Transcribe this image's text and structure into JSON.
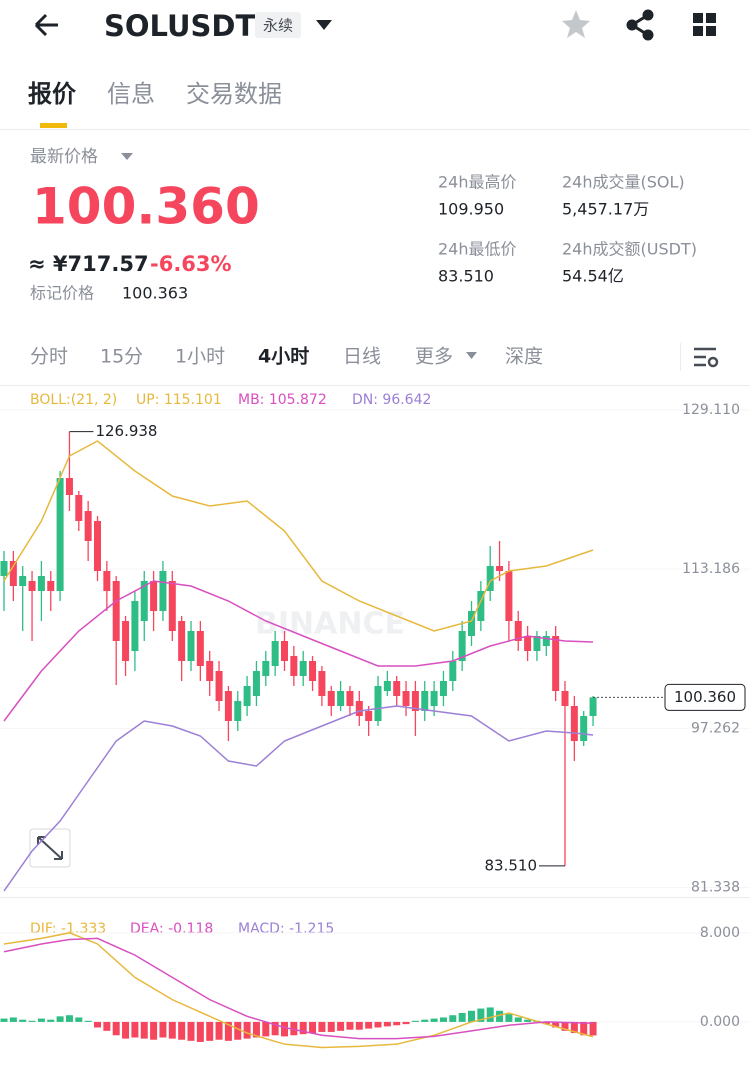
{
  "header": {
    "symbol": "SOLUSDT",
    "badge": "永续"
  },
  "tabs": [
    "报价",
    "信息",
    "交易数据"
  ],
  "price": {
    "label": "最新价格",
    "last": "100.360",
    "cny": "≈ ¥717.57",
    "change": "-6.63%",
    "mark_label": "标记价格",
    "mark": "100.363"
  },
  "stats": [
    {
      "label": "24h最高价",
      "value": "109.950"
    },
    {
      "label": "24h成交量(SOL)",
      "value": "5,457.17万"
    },
    {
      "label": "24h最低价",
      "value": "83.510"
    },
    {
      "label": "24h成交额(USDT)",
      "value": "54.54亿"
    }
  ],
  "intervals": [
    "分时",
    "15分",
    "1小时",
    "4小时",
    "日线",
    "更多",
    "深度"
  ],
  "chart_data": {
    "type": "candlestick",
    "watermark": "BINANCE",
    "indicator": {
      "name": "BOLL:(21, 2)",
      "up": "UP: 115.101",
      "mb": "MB: 105.872",
      "dn": "DN: 96.642"
    },
    "ylim": [
      80.6,
      130.6
    ],
    "yticks": [
      {
        "value": 129.11,
        "label": "129.110"
      },
      {
        "value": 113.186,
        "label": "113.186"
      },
      {
        "value": 97.262,
        "label": "97.262"
      },
      {
        "value": 81.338,
        "label": "81.338"
      }
    ],
    "grid": true,
    "candles": {
      "up_color": "#2ebd85",
      "down_color": "#f6465d",
      "open": [
        112.5,
        114,
        111.5,
        112,
        111,
        112,
        111,
        122.3,
        120.6,
        119,
        118,
        113,
        112,
        108,
        105,
        108,
        112,
        109,
        112,
        108,
        104,
        107,
        104,
        103,
        101,
        98,
        99.5,
        100.5,
        102.5,
        103.5,
        106,
        104.5,
        102.5,
        104,
        103,
        101,
        99.5,
        101,
        100,
        99,
        98,
        101,
        102,
        101,
        101,
        99,
        99.5,
        100.5,
        102,
        104,
        106.5,
        108,
        111,
        113.5,
        113,
        108,
        106.5,
        105,
        105.5,
        106.5,
        101,
        99.5,
        96,
        98.5
      ],
      "close": [
        114,
        111.5,
        112.5,
        111,
        112.5,
        111,
        122.3,
        120.6,
        118,
        116,
        113,
        111,
        106,
        104,
        110,
        112,
        109,
        113,
        107,
        104,
        107,
        103.5,
        102,
        100,
        98,
        100,
        101.5,
        103,
        104,
        106,
        104,
        102.5,
        104,
        102,
        100.5,
        99.5,
        101,
        99.5,
        98.5,
        98,
        101.5,
        102,
        100.5,
        99.5,
        99,
        101,
        101,
        102,
        104,
        107,
        109,
        111,
        113.5,
        113,
        108,
        106,
        105,
        106.5,
        106.5,
        101,
        99.5,
        96,
        98.5,
        100.36
      ],
      "high": [
        115,
        115,
        113.5,
        113,
        114,
        113,
        123,
        126.938,
        121,
        120,
        118.5,
        114,
        112.5,
        108.5,
        111,
        113,
        113,
        114,
        113,
        108.5,
        108,
        108,
        105,
        104,
        101.5,
        101,
        102.5,
        104,
        105,
        107,
        107,
        105.5,
        105,
        104.5,
        103.5,
        101.5,
        102,
        101.5,
        101,
        99.5,
        102.5,
        103,
        102.5,
        102,
        102,
        102,
        102,
        103,
        105,
        108,
        110,
        112,
        115.5,
        116,
        114,
        109,
        107.5,
        107,
        107,
        107.5,
        102,
        100.5,
        99,
        100.5
      ],
      "low": [
        109,
        110,
        107,
        106,
        108,
        109,
        110,
        119,
        117,
        114,
        112,
        109,
        101.6,
        102.5,
        103,
        106,
        107,
        108,
        106,
        102,
        103,
        102,
        100.5,
        99,
        96,
        97,
        98.5,
        99.5,
        101.5,
        102.5,
        103,
        101.5,
        101.5,
        101,
        99.5,
        98.5,
        99,
        98.5,
        97.5,
        96.5,
        97.5,
        100.5,
        99.5,
        98.5,
        96.5,
        98,
        98.5,
        99.5,
        101,
        103,
        105.5,
        107,
        110,
        112,
        106,
        105,
        104,
        104,
        104.5,
        100,
        83.51,
        94,
        95.5,
        97.5
      ]
    },
    "boll": [
      {
        "color": "#e6b83c",
        "x": [
          0,
          4,
          7,
          10,
          14,
          18,
          22,
          26,
          30,
          34,
          38,
          42,
          46,
          50,
          52,
          54,
          58,
          63
        ],
        "values": [
          112,
          118,
          124.5,
          126,
          123,
          120.5,
          119.5,
          120,
          117,
          112,
          110,
          108.5,
          107,
          108,
          112,
          113,
          113.5,
          115.1
        ]
      },
      {
        "color": "#d84fc0",
        "x": [
          0,
          4,
          8,
          12,
          16,
          20,
          24,
          28,
          32,
          36,
          40,
          44,
          48,
          52,
          56,
          60,
          63
        ],
        "values": [
          98,
          103,
          107,
          110,
          112,
          111.5,
          110,
          108,
          106.5,
          105,
          103.5,
          103.5,
          104,
          105.5,
          106.5,
          106,
          105.9
        ]
      },
      {
        "color": "#9c7fd6",
        "x": [
          0,
          3,
          6,
          9,
          12,
          15,
          18,
          21,
          24,
          27,
          30,
          34,
          38,
          42,
          46,
          50,
          54,
          58,
          61,
          63
        ],
        "values": [
          81,
          85,
          88,
          92,
          96,
          98,
          97.5,
          96.5,
          94,
          93.5,
          96,
          97.5,
          99,
          99.5,
          99,
          98.5,
          96,
          97,
          96.8,
          96.6
        ]
      }
    ],
    "annotations": [
      {
        "value": 126.938,
        "label": "126.938"
      },
      {
        "value": 83.51,
        "label": "83.510"
      }
    ],
    "last_price": {
      "value": 100.36,
      "label": "100.360"
    },
    "macd": {
      "legend": {
        "dif": "DIF: -1.333",
        "dea": "DEA: -0.118",
        "macd": "MACD: -1.215"
      },
      "ylim": [
        -3.6,
        10.5
      ],
      "yticks": [
        {
          "value": 8,
          "label": "8.000"
        },
        {
          "value": 0,
          "label": "0.000"
        }
      ],
      "dif": {
        "color": "#e6b83c",
        "x": [
          0,
          4,
          7,
          10,
          14,
          18,
          22,
          26,
          30,
          34,
          38,
          42,
          46,
          50,
          54,
          58,
          63
        ],
        "values": [
          7,
          7.5,
          8,
          7,
          4,
          2,
          0.5,
          -1,
          -2,
          -2.3,
          -2.2,
          -2,
          -1.2,
          0,
          0.8,
          -0.2,
          -1.333
        ]
      },
      "dea": {
        "color": "#d84fc0",
        "x": [
          0,
          4,
          7,
          10,
          14,
          18,
          22,
          26,
          30,
          34,
          38,
          42,
          46,
          50,
          54,
          58,
          63
        ],
        "values": [
          6.3,
          7,
          7.4,
          7.5,
          6,
          4,
          2,
          0.5,
          -0.5,
          -1.2,
          -1.5,
          -1.5,
          -1.3,
          -0.8,
          -0.3,
          0,
          -0.118
        ]
      },
      "histogram": [
        0.3,
        0.4,
        0.2,
        0.1,
        0.3,
        0.2,
        0.5,
        0.6,
        0.4,
        0.1,
        -0.5,
        -0.8,
        -1.2,
        -1.5,
        -1.4,
        -1.5,
        -1.6,
        -1.4,
        -1.5,
        -1.6,
        -1.7,
        -1.8,
        -1.7,
        -1.6,
        -1.7,
        -1.6,
        -1.5,
        -1.4,
        -1.3,
        -1.2,
        -1.3,
        -1.2,
        -1.1,
        -1,
        -0.9,
        -0.9,
        -0.8,
        -0.7,
        -0.7,
        -0.6,
        -0.5,
        -0.4,
        -0.3,
        -0.2,
        0.1,
        0.2,
        0.3,
        0.4,
        0.6,
        0.8,
        1,
        1.2,
        1.3,
        1,
        0.7,
        0.4,
        0.2,
        0.1,
        -0.2,
        -0.5,
        -0.8,
        -1,
        -1.2,
        -1.215
      ]
    }
  }
}
